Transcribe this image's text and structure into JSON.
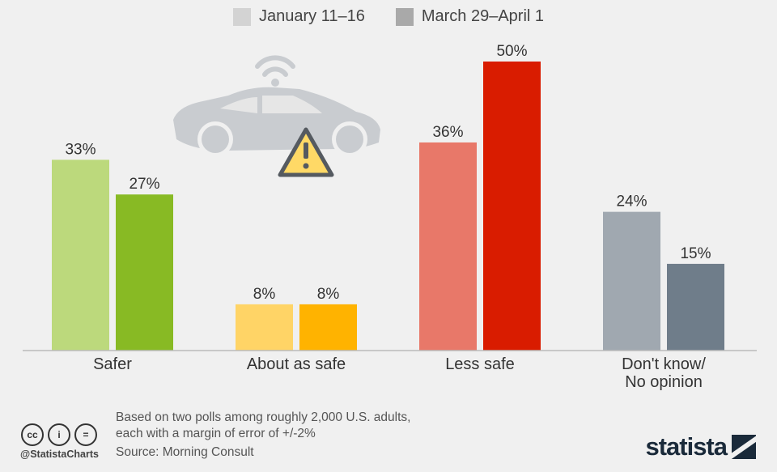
{
  "colors": {
    "legend_jan": "#d3d3d3",
    "legend_mar": "#a9a9a9",
    "baseline": "#bbbbbb",
    "car_body": "#c9ccd0",
    "car_window": "#e6e6e6",
    "warning_fill": "#ffd966",
    "warning_stroke": "#555a60"
  },
  "legend": {
    "items": [
      {
        "label": "January 11–16",
        "color": "#d3d3d3"
      },
      {
        "label": "March 29–April 1",
        "color": "#a9a9a9"
      }
    ]
  },
  "chart_data": {
    "type": "bar",
    "categories": [
      "Safer",
      "About as safe",
      "Less safe",
      "Don't know/\nNo opinion"
    ],
    "series": [
      {
        "name": "January 11–16",
        "values": [
          33,
          8,
          36,
          24
        ],
        "colors": [
          "#bcd97c",
          "#ffd466",
          "#e87869",
          "#a0a8b0"
        ]
      },
      {
        "name": "March 29–April 1",
        "values": [
          27,
          8,
          50,
          15
        ],
        "colors": [
          "#88ba24",
          "#ffb300",
          "#d91c00",
          "#6f7d8a"
        ]
      }
    ],
    "value_suffix": "%",
    "ylim": [
      0,
      50
    ],
    "grid": false,
    "legend_placement": "top-center",
    "title": "",
    "xlabel": "",
    "ylabel": ""
  },
  "footer": {
    "note_line1": "Based on two polls among roughly 2,000 U.S. adults,",
    "note_line2": "each with a margin of error of +/-2%",
    "source": "Source: Morning Consult",
    "handle": "@StatistaCharts",
    "brand": "statista",
    "cc_icons": [
      "cc",
      "i",
      "="
    ]
  }
}
